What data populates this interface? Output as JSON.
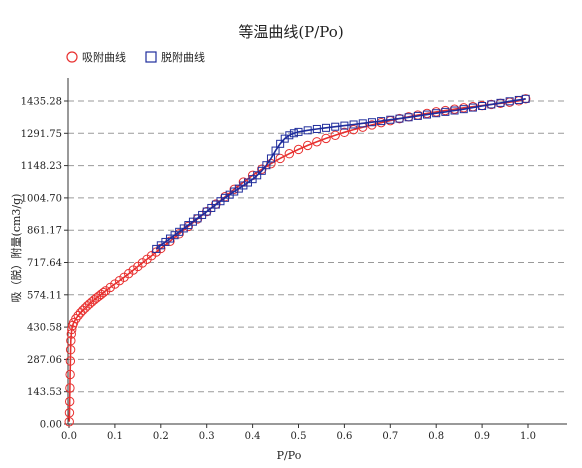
{
  "chart_data": {
    "type": "line",
    "title": "等温曲线(P/Po)",
    "xlabel": "P/Po",
    "ylabel": "吸（脱）附量(cm3/g)",
    "xlim": [
      0,
      1.05
    ],
    "ylim": [
      0,
      1500
    ],
    "x_ticks": [
      "0.0",
      "0.1",
      "0.2",
      "0.3",
      "0.4",
      "0.5",
      "0.6",
      "0.7",
      "0.8",
      "0.9",
      "1.0"
    ],
    "x_tick_values": [
      0,
      0.1,
      0.2,
      0.3,
      0.4,
      0.5,
      0.6,
      0.7,
      0.8,
      0.9,
      1.0
    ],
    "y_ticks": [
      "0.00",
      "143.53",
      "287.06",
      "430.58",
      "574.11",
      "717.64",
      "861.17",
      "1004.70",
      "1148.23",
      "1291.75",
      "1435.28"
    ],
    "y_tick_values": [
      0,
      143.53,
      287.06,
      430.58,
      574.11,
      717.64,
      861.17,
      1004.7,
      1148.23,
      1291.75,
      1435.28
    ],
    "grid": "horizontal dashed",
    "legend": "top-left",
    "series": [
      {
        "name": "吸附曲线",
        "color": "#e8302f",
        "marker": "circle",
        "x": [
          0.0005,
          0.001,
          0.0015,
          0.002,
          0.0025,
          0.003,
          0.0035,
          0.004,
          0.005,
          0.006,
          0.008,
          0.01,
          0.015,
          0.02,
          0.025,
          0.03,
          0.035,
          0.04,
          0.045,
          0.05,
          0.055,
          0.06,
          0.065,
          0.07,
          0.075,
          0.08,
          0.09,
          0.1,
          0.11,
          0.12,
          0.13,
          0.14,
          0.15,
          0.16,
          0.17,
          0.18,
          0.19,
          0.2,
          0.22,
          0.24,
          0.26,
          0.28,
          0.3,
          0.32,
          0.34,
          0.36,
          0.38,
          0.4,
          0.42,
          0.44,
          0.46,
          0.48,
          0.5,
          0.52,
          0.54,
          0.56,
          0.58,
          0.6,
          0.62,
          0.64,
          0.66,
          0.68,
          0.7,
          0.72,
          0.74,
          0.76,
          0.78,
          0.8,
          0.82,
          0.84,
          0.86,
          0.88,
          0.9,
          0.92,
          0.94,
          0.96,
          0.98,
          0.995
        ],
        "y": [
          10,
          50,
          100,
          160,
          220,
          280,
          330,
          370,
          400,
          420,
          438,
          450,
          468,
          482,
          494,
          505,
          515,
          525,
          534,
          543,
          552,
          560,
          568,
          576,
          584,
          592,
          607,
          622,
          637,
          652,
          668,
          684,
          700,
          716,
          732,
          748,
          764,
          780,
          812,
          845,
          878,
          911,
          944,
          977,
          1010,
          1043,
          1075,
          1105,
          1132,
          1157,
          1180,
          1201,
          1220,
          1238,
          1254,
          1269,
          1283,
          1296,
          1308,
          1319,
          1329,
          1339,
          1348,
          1357,
          1365,
          1373,
          1380,
          1387,
          1393,
          1399,
          1405,
          1410,
          1415,
          1420,
          1425,
          1430,
          1436,
          1445
        ]
      },
      {
        "name": "脱附曲线",
        "color": "#1f2d9c",
        "marker": "square",
        "x": [
          0.995,
          0.98,
          0.96,
          0.94,
          0.92,
          0.9,
          0.88,
          0.86,
          0.84,
          0.82,
          0.8,
          0.78,
          0.76,
          0.74,
          0.72,
          0.7,
          0.68,
          0.66,
          0.64,
          0.62,
          0.6,
          0.58,
          0.56,
          0.54,
          0.52,
          0.5,
          0.49,
          0.48,
          0.47,
          0.46,
          0.45,
          0.44,
          0.43,
          0.42,
          0.41,
          0.4,
          0.39,
          0.38,
          0.37,
          0.36,
          0.35,
          0.34,
          0.33,
          0.32,
          0.31,
          0.3,
          0.29,
          0.28,
          0.27,
          0.26,
          0.25,
          0.24,
          0.23,
          0.22,
          0.21,
          0.2,
          0.19
        ],
        "y": [
          1445,
          1440,
          1434,
          1427,
          1420,
          1413,
          1406,
          1399,
          1393,
          1387,
          1381,
          1375,
          1369,
          1363,
          1357,
          1352,
          1346,
          1341,
          1336,
          1331,
          1326,
          1321,
          1316,
          1311,
          1305,
          1298,
          1292,
          1283,
          1268,
          1245,
          1215,
          1180,
          1150,
          1125,
          1105,
          1088,
          1073,
          1060,
          1046,
          1033,
          1019,
          1005,
          990,
          975,
          960,
          944,
          929,
          914,
          899,
          884,
          869,
          854,
          839,
          824,
          809,
          794,
          778
        ]
      }
    ]
  }
}
